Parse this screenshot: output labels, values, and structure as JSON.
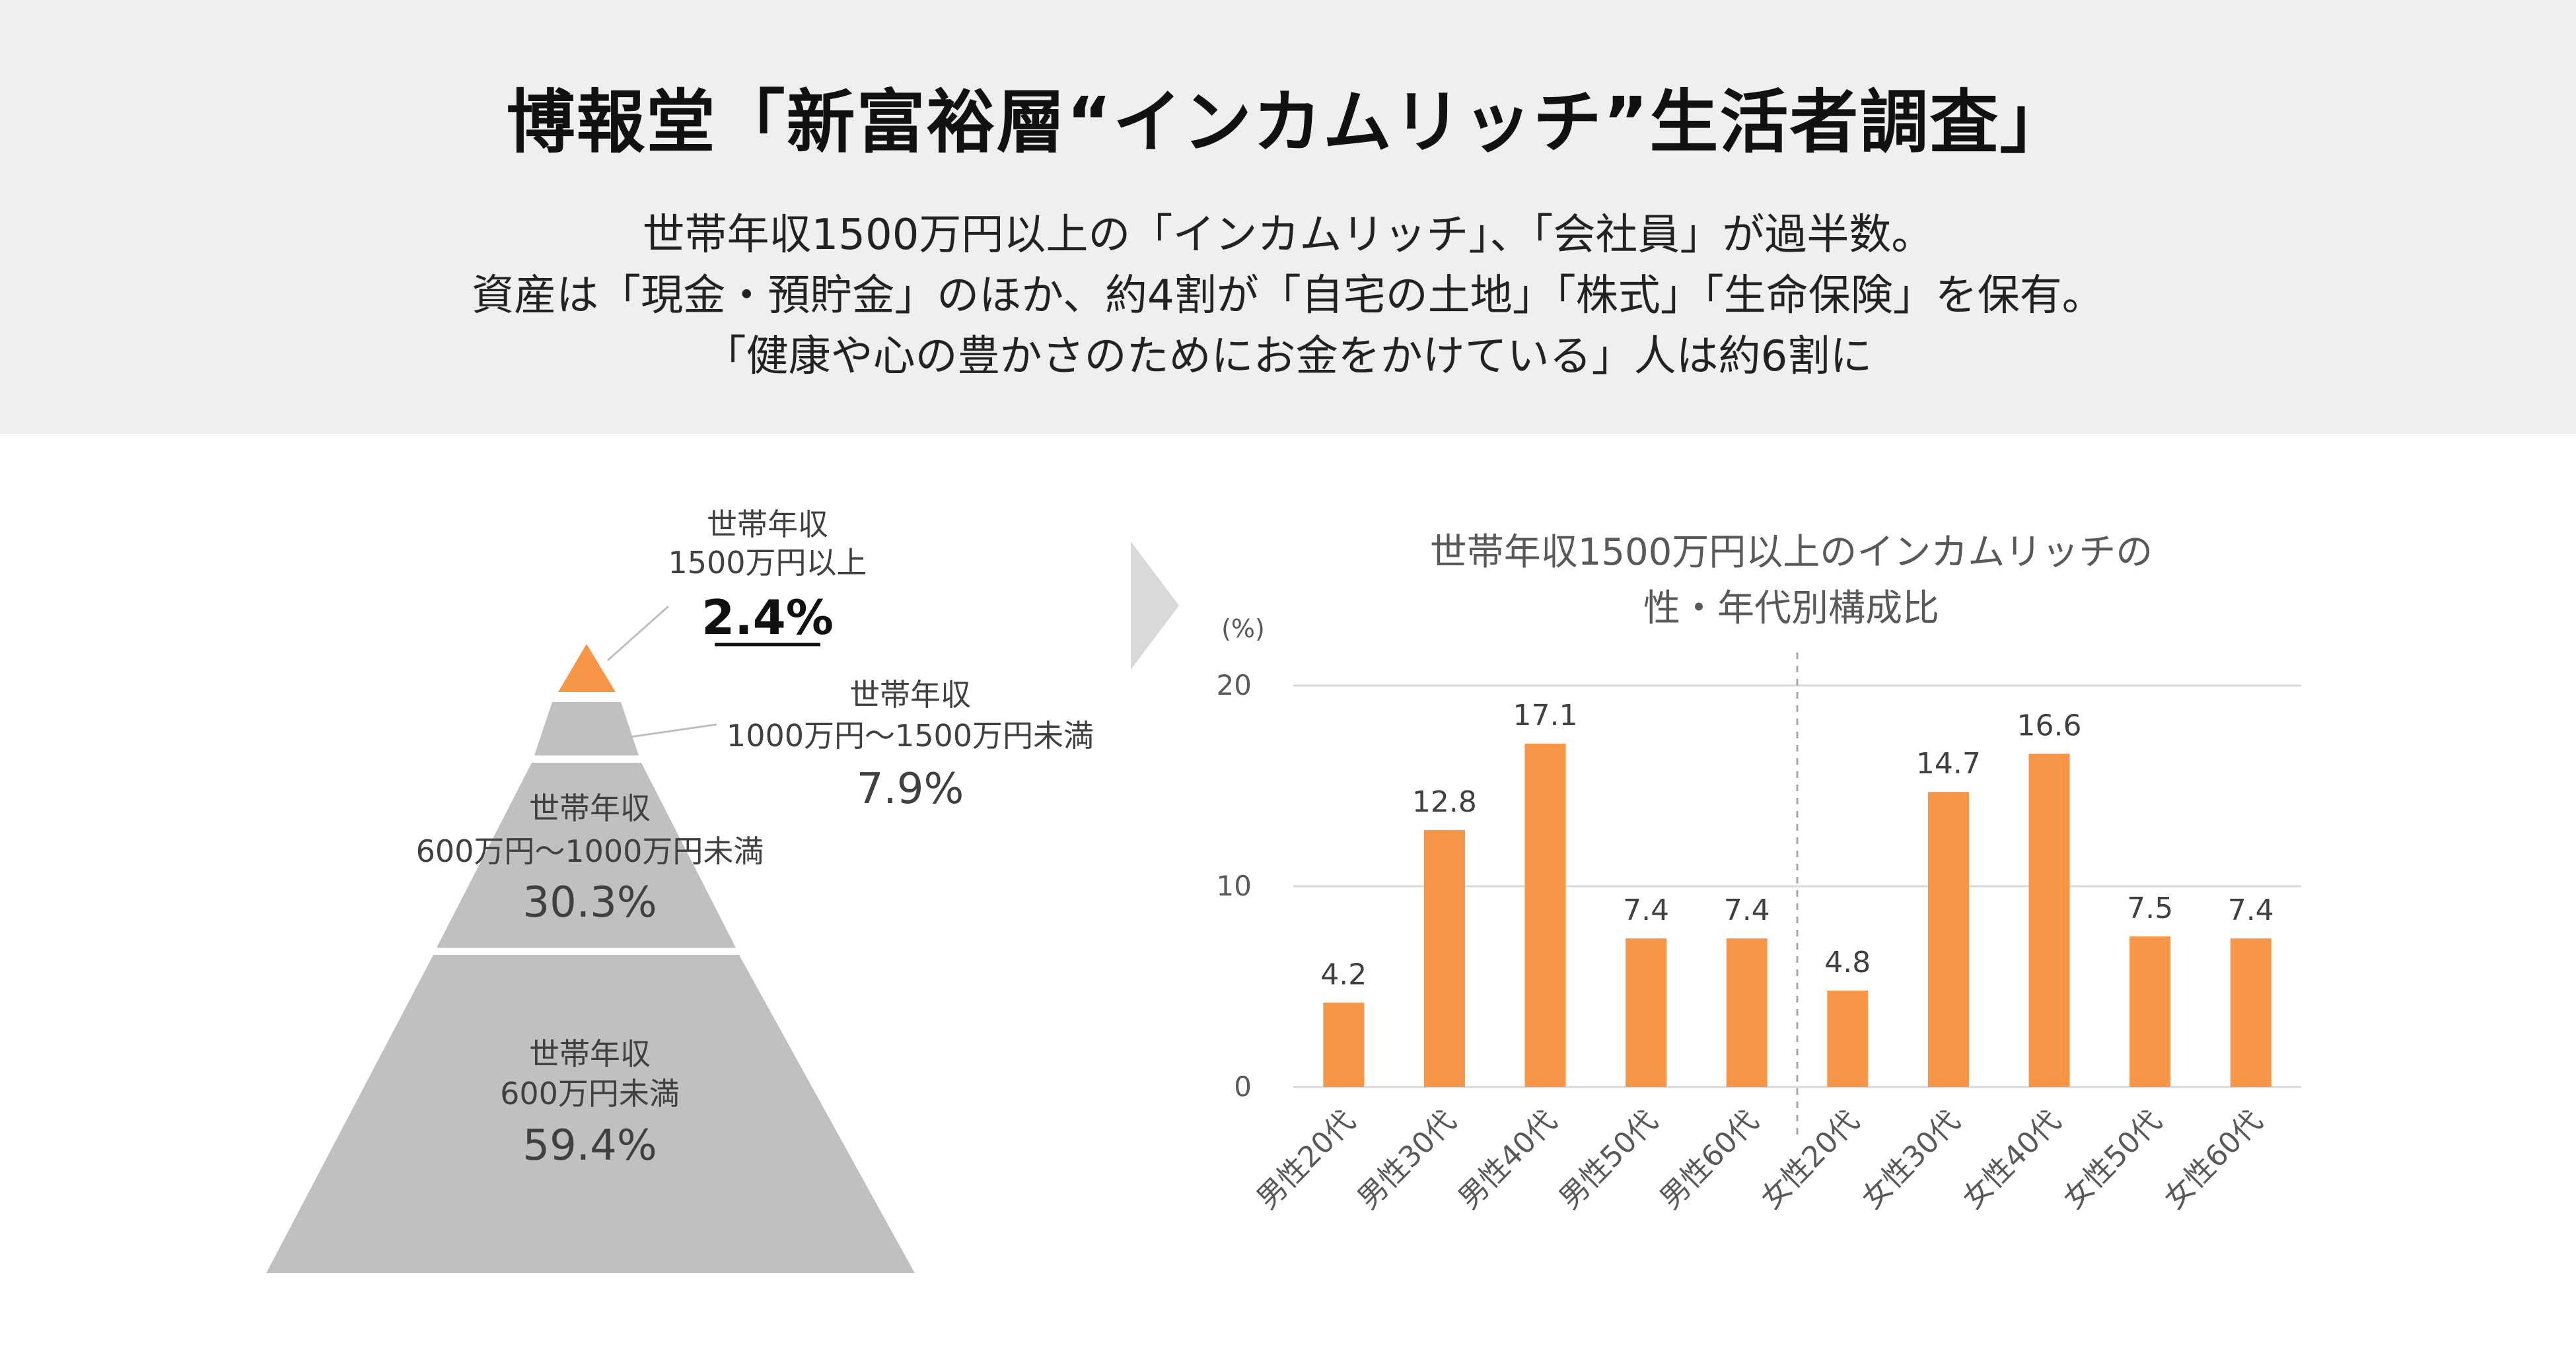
{
  "header": {
    "title": "博報堂「新富裕層“インカムリッチ”生活者調査」",
    "summary_lines": [
      "世帯年収1500万円以上の「インカムリッチ」、「会社員」が過半数。",
      "資産は「現金・預貯金」のほか、約4割が「自宅の土地」「株式」「生命保険」を保有。",
      "「健康や心の豊かさのためにお金をかけている」人は約6割に"
    ]
  },
  "colors": {
    "accent": "#f79646",
    "pyramid_gray": "#c0c0c0",
    "header_bg": "#efefef",
    "arrow_gray": "#d9d9d9"
  },
  "chart_data": [
    {
      "type": "pyramid",
      "segments": [
        {
          "name": "世帯年収",
          "range": "1500万円以上",
          "value": 2.4,
          "value_label": "2.4%"
        },
        {
          "name": "世帯年収",
          "range": "1000万円～1500万円未満",
          "value": 7.9,
          "value_label": "7.9%"
        },
        {
          "name": "世帯年収",
          "range": "600万円～1000万円未満",
          "value": 30.3,
          "value_label": "30.3%"
        },
        {
          "name": "世帯年収",
          "range": "600万円未満",
          "value": 59.4,
          "value_label": "59.4%"
        }
      ]
    },
    {
      "type": "bar",
      "title_lines": [
        "世帯年収1500万円以上のインカムリッチの",
        "性・年代別構成比"
      ],
      "unit": "(%)",
      "categories": [
        "男性20代",
        "男性30代",
        "男性40代",
        "男性50代",
        "男性60代",
        "女性20代",
        "女性30代",
        "女性40代",
        "女性50代",
        "女性60代"
      ],
      "values": [
        4.2,
        12.8,
        17.1,
        7.4,
        7.4,
        4.8,
        14.7,
        16.6,
        7.5,
        7.4
      ],
      "yticks": [
        0,
        10,
        20
      ],
      "ylim": [
        0,
        20
      ],
      "xlabel": "",
      "ylabel": ""
    }
  ]
}
